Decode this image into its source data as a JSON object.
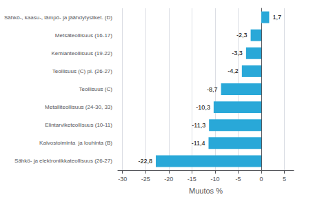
{
  "chart_data": {
    "type": "bar",
    "orientation": "horizontal",
    "categories": [
      "Sähkö- ja elektroniikkateollisuus (26-27)",
      "Kaivostoiminta  ja louhinta (B)",
      "Elintarviketeollisuus (10-11)",
      "Metalliteollisuus (24-30, 33)",
      "Teollisuus (C)",
      "Teollisuus (C) pl. (26-27)",
      "Kemianteollisuus (19-22)",
      "Metsäteollisuus (16-17)",
      "Sähkö-, kaasu-, lämpö- ja jäähdytysliket. (D)"
    ],
    "values": [
      -22.8,
      -11.4,
      -11.3,
      -10.3,
      -8.7,
      -4.2,
      -3.3,
      -2.3,
      1.7
    ],
    "value_labels": [
      "-22,8",
      "-11,4",
      "-11,3",
      "-10,3",
      "-8,7",
      "-4,2",
      "-3,3",
      "-2,3",
      "1,7"
    ],
    "data_labels": true,
    "color": "#29a8d8",
    "xlabel": "Muutos %",
    "xlim": [
      -31,
      7
    ],
    "xticks": [
      -30,
      -25,
      -20,
      -15,
      -10,
      -5,
      0,
      5
    ],
    "grid": true
  }
}
